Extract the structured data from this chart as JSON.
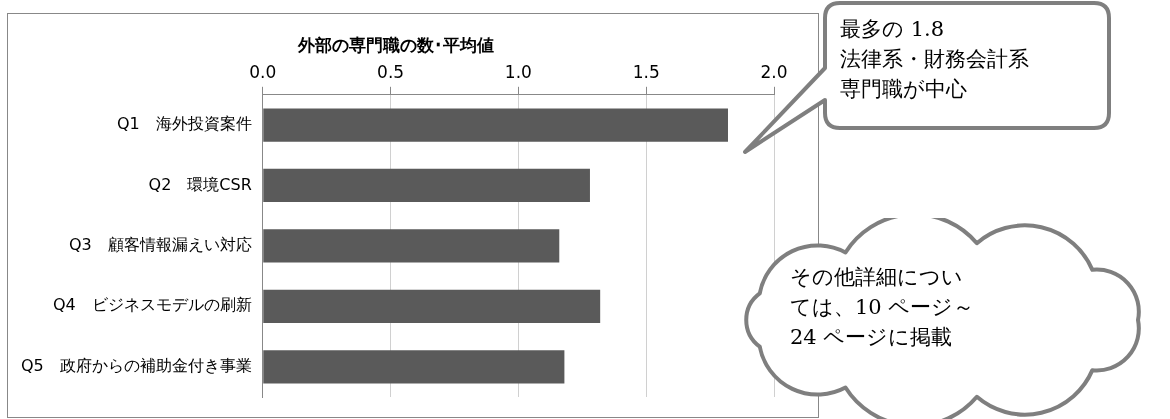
{
  "chart_data": {
    "type": "bar",
    "orientation": "horizontal",
    "title": "外部の専門職の数･平均値",
    "categories": [
      "Q1　海外投資案件",
      "Q2　環境CSR",
      "Q3　顧客情報漏えい対応",
      "Q4　ビジネスモデルの刷新",
      "Q5　政府からの補助金付き事業"
    ],
    "values": [
      1.82,
      1.28,
      1.16,
      1.32,
      1.18
    ],
    "color": "#5a5a5a",
    "xlim": [
      0,
      2
    ],
    "xticks": [
      {
        "value": 0,
        "label": "0.0"
      },
      {
        "value": 0.5,
        "label": "0.5"
      },
      {
        "value": 1,
        "label": "1.0"
      },
      {
        "value": 1.5,
        "label": "1.5"
      },
      {
        "value": 2,
        "label": "2.0"
      }
    ],
    "grid": "x",
    "legend": false,
    "annotations": [
      "最多の 1.8\n法律系・財務会計系専門職が中心",
      "その他詳細については、10 ページ～24 ページに掲載"
    ]
  }
}
